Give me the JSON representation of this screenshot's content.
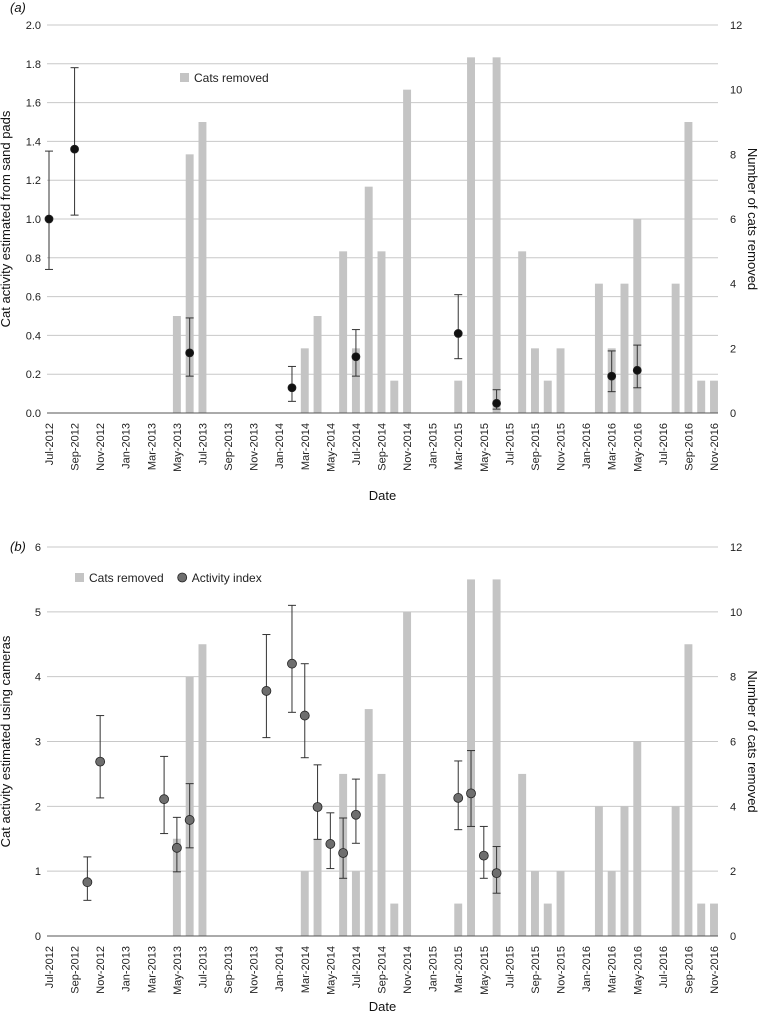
{
  "chart_data": [
    {
      "panel": "(a)",
      "type": "bar",
      "title": "",
      "xlabel": "Date",
      "ylabel": "Cat activity estimated from sand pads",
      "ylabel_right": "Number of cats removed",
      "ylim": [
        0,
        2.0
      ],
      "ylim_right": [
        0,
        12
      ],
      "yticks": [
        "0.0",
        "0.2",
        "0.4",
        "0.6",
        "0.8",
        "1.0",
        "1.2",
        "1.4",
        "1.6",
        "1.8",
        "2.0"
      ],
      "yticks_right": [
        "0",
        "2",
        "4",
        "6",
        "8",
        "10",
        "12"
      ],
      "grid": true,
      "legend_position": "top-left",
      "bar_color": "#c4c4c4",
      "point_color": "#111111",
      "x_tick_labels": [
        "Jul-2012",
        "Sep-2012",
        "Nov-2012",
        "Jan-2013",
        "Mar-2013",
        "May-2013",
        "Jul-2013",
        "Sep-2013",
        "Nov-2013",
        "Jan-2014",
        "Mar-2014",
        "May-2014",
        "Jul-2014",
        "Sep-2014",
        "Nov-2014",
        "Jan-2015",
        "Mar-2015",
        "May-2015",
        "Jul-2015",
        "Sep-2015",
        "Nov-2015",
        "Jan-2016",
        "Mar-2016",
        "May-2016",
        "Jul-2016",
        "Sep-2016",
        "Nov-2016"
      ],
      "series": [
        {
          "name": "Cats removed",
          "kind": "bar",
          "axis": "right",
          "points": [
            {
              "x": "May-2013",
              "y": 3
            },
            {
              "x": "Jun-2013",
              "y": 8
            },
            {
              "x": "Jul-2013",
              "y": 9
            },
            {
              "x": "Mar-2014",
              "y": 2
            },
            {
              "x": "Apr-2014",
              "y": 3
            },
            {
              "x": "Jun-2014",
              "y": 5
            },
            {
              "x": "Jul-2014",
              "y": 2
            },
            {
              "x": "Aug-2014",
              "y": 7
            },
            {
              "x": "Sep-2014",
              "y": 5
            },
            {
              "x": "Oct-2014",
              "y": 1
            },
            {
              "x": "Nov-2014",
              "y": 10
            },
            {
              "x": "Mar-2015",
              "y": 1
            },
            {
              "x": "Apr-2015",
              "y": 11
            },
            {
              "x": "Jun-2015",
              "y": 11
            },
            {
              "x": "Aug-2015",
              "y": 5
            },
            {
              "x": "Sep-2015",
              "y": 2
            },
            {
              "x": "Oct-2015",
              "y": 1
            },
            {
              "x": "Nov-2015",
              "y": 2
            },
            {
              "x": "Feb-2016",
              "y": 4
            },
            {
              "x": "Mar-2016",
              "y": 2
            },
            {
              "x": "Apr-2016",
              "y": 4
            },
            {
              "x": "May-2016",
              "y": 6
            },
            {
              "x": "Aug-2016",
              "y": 4
            },
            {
              "x": "Sep-2016",
              "y": 9
            },
            {
              "x": "Oct-2016",
              "y": 1
            },
            {
              "x": "Nov-2016",
              "y": 1
            }
          ]
        },
        {
          "kind": "point",
          "axis": "left",
          "points": [
            {
              "x": "Jul-2012",
              "y": 1.0,
              "lo": 0.74,
              "hi": 1.35
            },
            {
              "x": "Sep-2012",
              "y": 1.36,
              "lo": 1.02,
              "hi": 1.78
            },
            {
              "x": "Jun-2013",
              "y": 0.31,
              "lo": 0.19,
              "hi": 0.49
            },
            {
              "x": "Feb-2014",
              "y": 0.13,
              "lo": 0.06,
              "hi": 0.24
            },
            {
              "x": "Jul-2014",
              "y": 0.29,
              "lo": 0.19,
              "hi": 0.43
            },
            {
              "x": "Mar-2015",
              "y": 0.41,
              "lo": 0.28,
              "hi": 0.61
            },
            {
              "x": "Jun-2015",
              "y": 0.05,
              "lo": 0.02,
              "hi": 0.12
            },
            {
              "x": "Mar-2016",
              "y": 0.19,
              "lo": 0.11,
              "hi": 0.32
            },
            {
              "x": "May-2016",
              "y": 0.22,
              "lo": 0.13,
              "hi": 0.35
            }
          ]
        }
      ]
    },
    {
      "panel": "(b)",
      "type": "bar",
      "title": "",
      "xlabel": "Date",
      "ylabel": "Cat activity estimated using cameras",
      "ylabel_right": "Number of cats removed",
      "ylim": [
        0,
        6
      ],
      "ylim_right": [
        0,
        12
      ],
      "yticks": [
        "0",
        "1",
        "2",
        "3",
        "4",
        "5",
        "6"
      ],
      "yticks_right": [
        "0",
        "2",
        "4",
        "6",
        "8",
        "10",
        "12"
      ],
      "grid": true,
      "legend_position": "top-left",
      "bar_color": "#c4c4c4",
      "point_color": "#6e6e6e",
      "x_tick_labels": [
        "Jul-2012",
        "Sep-2012",
        "Nov-2012",
        "Jan-2013",
        "Mar-2013",
        "May-2013",
        "Jul-2013",
        "Sep-2013",
        "Nov-2013",
        "Jan-2014",
        "Mar-2014",
        "May-2014",
        "Jul-2014",
        "Sep-2014",
        "Nov-2014",
        "Jan-2015",
        "Mar-2015",
        "May-2015",
        "Jul-2015",
        "Sep-2015",
        "Nov-2015",
        "Jan-2016",
        "Mar-2016",
        "May-2016",
        "Jul-2016",
        "Sep-2016",
        "Nov-2016"
      ],
      "series": [
        {
          "name": "Cats removed",
          "kind": "bar",
          "axis": "right",
          "points": [
            {
              "x": "May-2013",
              "y": 3
            },
            {
              "x": "Jun-2013",
              "y": 8
            },
            {
              "x": "Jul-2013",
              "y": 9
            },
            {
              "x": "Mar-2014",
              "y": 2
            },
            {
              "x": "Apr-2014",
              "y": 3
            },
            {
              "x": "Jun-2014",
              "y": 5
            },
            {
              "x": "Jul-2014",
              "y": 2
            },
            {
              "x": "Aug-2014",
              "y": 7
            },
            {
              "x": "Sep-2014",
              "y": 5
            },
            {
              "x": "Oct-2014",
              "y": 1
            },
            {
              "x": "Nov-2014",
              "y": 10
            },
            {
              "x": "Mar-2015",
              "y": 1
            },
            {
              "x": "Apr-2015",
              "y": 11
            },
            {
              "x": "Jun-2015",
              "y": 11
            },
            {
              "x": "Aug-2015",
              "y": 5
            },
            {
              "x": "Sep-2015",
              "y": 2
            },
            {
              "x": "Oct-2015",
              "y": 1
            },
            {
              "x": "Nov-2015",
              "y": 2
            },
            {
              "x": "Feb-2016",
              "y": 4
            },
            {
              "x": "Mar-2016",
              "y": 2
            },
            {
              "x": "Apr-2016",
              "y": 4
            },
            {
              "x": "May-2016",
              "y": 6
            },
            {
              "x": "Aug-2016",
              "y": 4
            },
            {
              "x": "Sep-2016",
              "y": 9
            },
            {
              "x": "Oct-2016",
              "y": 1
            },
            {
              "x": "Nov-2016",
              "y": 1
            }
          ]
        },
        {
          "name": "Activity index",
          "kind": "point",
          "axis": "left",
          "points": [
            {
              "x": "Oct-2012",
              "y": 0.83,
              "lo": 0.55,
              "hi": 1.22
            },
            {
              "x": "Nov-2012",
              "y": 2.69,
              "lo": 2.13,
              "hi": 3.4
            },
            {
              "x": "Apr-2013",
              "y": 2.11,
              "lo": 1.58,
              "hi": 2.77
            },
            {
              "x": "May-2013",
              "y": 1.36,
              "lo": 0.99,
              "hi": 1.83
            },
            {
              "x": "Jun-2013",
              "y": 1.79,
              "lo": 1.36,
              "hi": 2.35
            },
            {
              "x": "Dec-2013",
              "y": 3.78,
              "lo": 3.06,
              "hi": 4.65
            },
            {
              "x": "Feb-2014",
              "y": 4.2,
              "lo": 3.45,
              "hi": 5.1
            },
            {
              "x": "Mar-2014",
              "y": 3.4,
              "lo": 2.75,
              "hi": 4.2
            },
            {
              "x": "Apr-2014",
              "y": 1.99,
              "lo": 1.49,
              "hi": 2.64
            },
            {
              "x": "May-2014",
              "y": 1.42,
              "lo": 1.04,
              "hi": 1.9
            },
            {
              "x": "Jun-2014",
              "y": 1.28,
              "lo": 0.89,
              "hi": 1.82
            },
            {
              "x": "Jul-2014",
              "y": 1.87,
              "lo": 1.43,
              "hi": 2.42
            },
            {
              "x": "Mar-2015",
              "y": 2.13,
              "lo": 1.64,
              "hi": 2.7
            },
            {
              "x": "Apr-2015",
              "y": 2.2,
              "lo": 1.69,
              "hi": 2.86
            },
            {
              "x": "May-2015",
              "y": 1.24,
              "lo": 0.89,
              "hi": 1.69
            },
            {
              "x": "Jun-2015",
              "y": 0.97,
              "lo": 0.66,
              "hi": 1.38
            }
          ]
        }
      ]
    }
  ]
}
